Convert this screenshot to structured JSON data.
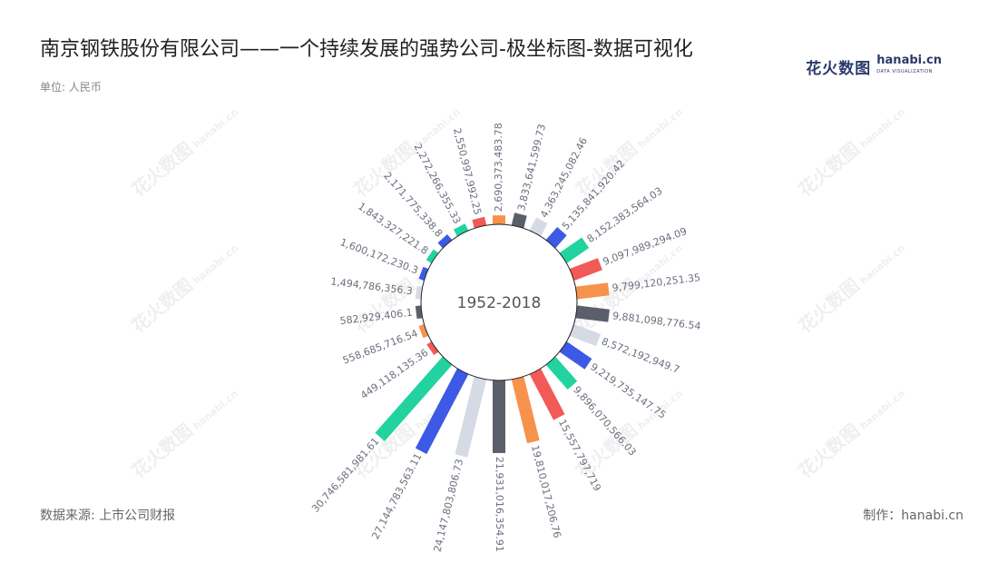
{
  "header": {
    "title": "南京钢铁股份有限公司——一个持续发展的强势公司-极坐标图-数据可视化",
    "unit": "单位: 人民币"
  },
  "logo": {
    "cn": "花火数图",
    "en": "hanabi.cn",
    "sub": "DATA VISUALIZATION"
  },
  "footer": {
    "source": "数据来源: 上市公司财报",
    "maker": "制作：hanabi.cn"
  },
  "watermark": {
    "cn": "花火数图",
    "en": "hanabi.cn"
  },
  "chart_data": {
    "type": "bar",
    "polar": true,
    "center_label": "1952-2018",
    "palette": [
      "#3d5ae6",
      "#22d3a0",
      "#f25a57",
      "#f7924d",
      "#5b5f6b",
      "#d5dae4"
    ],
    "values": [
      2171775338.8,
      2272266355.33,
      2550997992.25,
      2690373483.78,
      3833641599.73,
      4363245082.46,
      5135841920.42,
      8152383564.03,
      9097989294.09,
      9799120251.35,
      9881098776.54,
      8572192949.7,
      9219735147.75,
      9896070566.03,
      15557797719,
      19810017206.76,
      21931016354.91,
      24147803806.73,
      27144783563.11,
      30746581981.61,
      449118135.36,
      558685716.54,
      582929406.1,
      1494786356.3,
      1600172230.3,
      1843327221.8
    ],
    "labels": [
      "2,171,775,338.8",
      "2,272,266,355.33",
      "2,550,997,992.25",
      "2,690,373,483.78",
      "3,833,641,599.73",
      "4,363,245,082.46",
      "5,135,841,920.42",
      "8,152,383,564.03",
      "9,097,989,294.09",
      "9,799,120,251.35",
      "9,881,098,776.54",
      "8,572,192,949.7",
      "9,219,735,147.75",
      "9,896,070,566.03",
      "15,557,797,719",
      "19,810,017,206.76",
      "21,931,016,354.91",
      "24,147,803,806.73",
      "27,144,783,563.11",
      "30,746,581,981.61",
      "449,118,135.36",
      "558,685,716.54",
      "582,929,406.1",
      "1,494,786,356.3",
      "1,600,172,230.3",
      "1,843,327,221.8"
    ]
  }
}
